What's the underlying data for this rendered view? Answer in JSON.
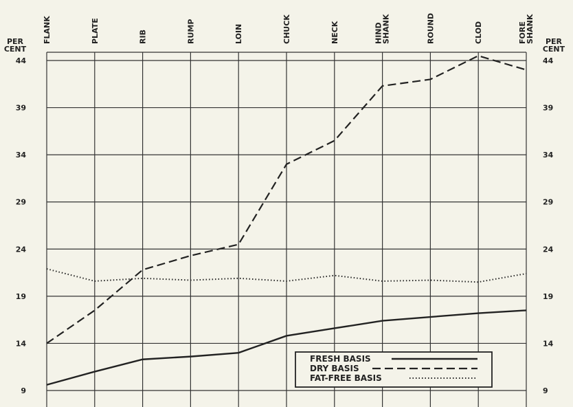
{
  "chart_data": {
    "type": "line",
    "categories": [
      "FLANK",
      "PLATE",
      "RIB",
      "RUMP",
      "LOIN",
      "CHUCK",
      "NECK",
      "HIND SHANK",
      "ROUND",
      "CLOD",
      "FORE SHANK"
    ],
    "y_unit_label": "PER CENT",
    "yticks": [
      9,
      14,
      19,
      24,
      29,
      34,
      39,
      44
    ],
    "ylim": [
      8.5,
      45
    ],
    "grid": true,
    "legend_position": "bottom-right",
    "series": [
      {
        "name": "FRESH BASIS",
        "style": "solid",
        "values": [
          9.6,
          11.0,
          12.3,
          12.6,
          13.0,
          14.8,
          15.6,
          16.4,
          16.8,
          17.2,
          17.5
        ]
      },
      {
        "name": "DRY BASIS",
        "style": "dashed",
        "values": [
          14.0,
          17.5,
          21.8,
          23.3,
          24.5,
          33.0,
          35.5,
          41.3,
          42.0,
          44.5,
          43.0
        ]
      },
      {
        "name": "FAT-FREE BASIS",
        "style": "dotted",
        "values": [
          21.9,
          20.6,
          20.9,
          20.7,
          20.9,
          20.6,
          21.2,
          20.6,
          20.7,
          20.5,
          21.4
        ]
      }
    ]
  }
}
